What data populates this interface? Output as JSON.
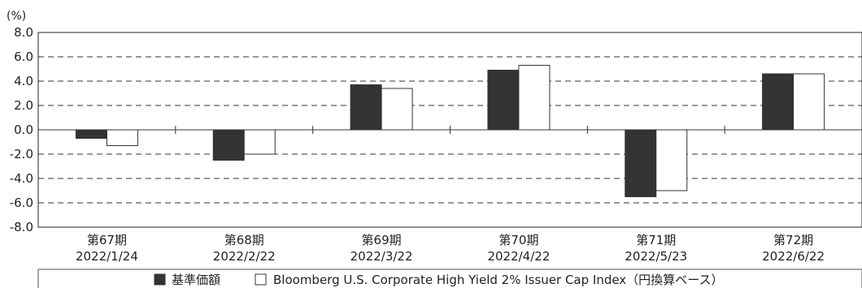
{
  "chart_data": {
    "type": "bar",
    "unit_label": "(%)",
    "categories": [
      {
        "period": "第67期",
        "date": "2022/1/24"
      },
      {
        "period": "第68期",
        "date": "2022/2/22"
      },
      {
        "period": "第69期",
        "date": "2022/3/22"
      },
      {
        "period": "第70期",
        "date": "2022/4/22"
      },
      {
        "period": "第71期",
        "date": "2022/5/23"
      },
      {
        "period": "第72期",
        "date": "2022/6/22"
      }
    ],
    "series": [
      {
        "name": "基準価額",
        "values": [
          -0.7,
          -2.5,
          3.7,
          4.9,
          -5.5,
          4.6
        ],
        "fill": "#333333"
      },
      {
        "name": "Bloomberg U.S. Corporate High Yield 2% Issuer Cap Index（円換算ベース）",
        "values": [
          -1.3,
          -2.0,
          3.4,
          5.3,
          -5.0,
          4.6
        ],
        "fill": "#ffffff"
      }
    ],
    "ylim": [
      -8.0,
      8.0
    ],
    "yticks": [
      "8.0",
      "6.0",
      "4.0",
      "2.0",
      "0.0",
      "-2.0",
      "-4.0",
      "-6.0",
      "-8.0"
    ],
    "grid": "dashed horizontal",
    "legend_position": "bottom"
  }
}
